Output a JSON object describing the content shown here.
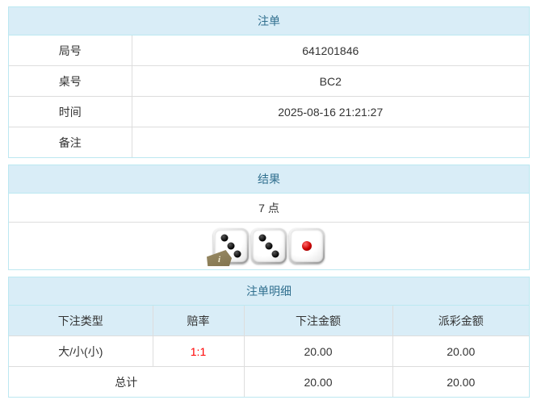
{
  "colors": {
    "panel_header_bg": "#d9edf7",
    "panel_header_text": "#31708f",
    "panel_border": "#bce8f1",
    "cell_border": "#dddddd",
    "text": "#333333",
    "odds_red": "#ff0000"
  },
  "bet_order": {
    "title": "注单",
    "rows": [
      {
        "label": "局号",
        "value": "641201846"
      },
      {
        "label": "桌号",
        "value": "BC2"
      },
      {
        "label": "时间",
        "value": "2025-08-16 21:21:27"
      },
      {
        "label": "备注",
        "value": ""
      }
    ]
  },
  "result": {
    "title": "结果",
    "points": "7 点",
    "dice": [
      {
        "value": 3,
        "dot_color": "black",
        "info_badge": true
      },
      {
        "value": 3,
        "dot_color": "black",
        "info_badge": false
      },
      {
        "value": 1,
        "dot_color": "red",
        "info_badge": false
      }
    ],
    "info_badge_glyph": "i"
  },
  "bet_detail": {
    "title": "注单明细",
    "columns": [
      "下注类型",
      "赔率",
      "下注金额",
      "派彩金额"
    ],
    "rows": [
      {
        "type": "大/小(小)",
        "odds": "1:1",
        "bet_amount": "20.00",
        "payout": "20.00"
      }
    ],
    "total": {
      "label": "总计",
      "bet_amount": "20.00",
      "payout": "20.00"
    }
  }
}
